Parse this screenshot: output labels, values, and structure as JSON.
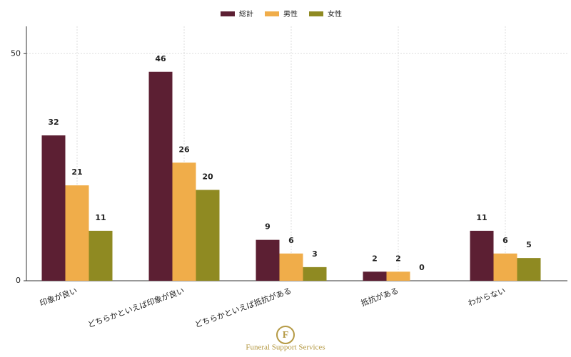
{
  "chart_data": {
    "type": "bar",
    "categories": [
      "印象が良い",
      "どちらかといえば印象が良い",
      "どちらかといえば抵抗がある",
      "抵抗がある",
      "わからない"
    ],
    "series": [
      {
        "name": "総計",
        "color": "#5c1f33",
        "values": [
          32,
          46,
          9,
          2,
          11
        ]
      },
      {
        "name": "男性",
        "color": "#f0ad4a",
        "values": [
          21,
          26,
          6,
          2,
          6
        ]
      },
      {
        "name": "女性",
        "color": "#8f8a22",
        "values": [
          11,
          20,
          3,
          0,
          5
        ]
      }
    ],
    "ylim": [
      0,
      56
    ],
    "yticks": [
      0,
      50
    ],
    "grid": true,
    "legend": "top",
    "watermark": "Funeral Support Services"
  }
}
